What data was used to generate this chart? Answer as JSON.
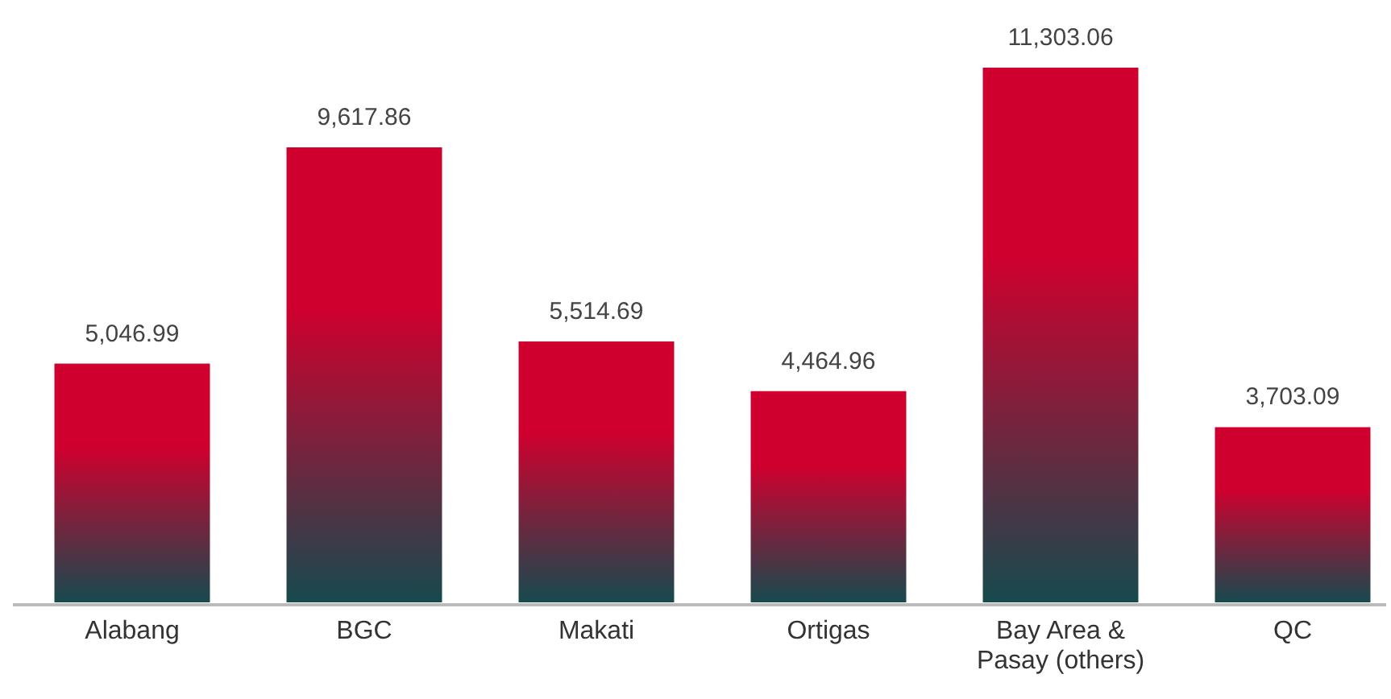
{
  "chart_data": {
    "type": "bar",
    "categories": [
      "Alabang",
      "BGC",
      "Makati",
      "Ortigas",
      "Bay Area & Pasay (others)",
      "QC"
    ],
    "values": [
      5046.99,
      9617.86,
      5514.69,
      4464.96,
      11303.06,
      3703.09
    ],
    "color": "#d0002e",
    "data_labels": true,
    "value_labels": [
      "5,046.99",
      "9,617.86",
      "5,514.69",
      "4,464.96",
      "11,303.06",
      "3,703.09"
    ]
  }
}
